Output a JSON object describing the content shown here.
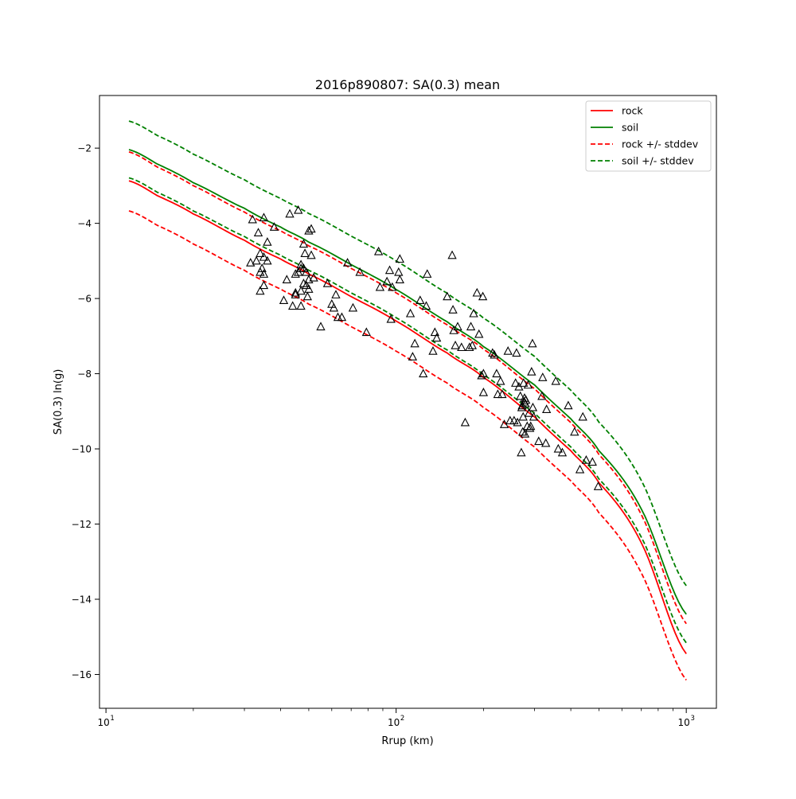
{
  "chart_data": {
    "type": "scatter",
    "title": "2016p890807: SA(0.3) mean",
    "xlabel": "Rrup (km)",
    "ylabel": "SA(0.3) ln(g)",
    "xscale": "log",
    "xlim": [
      9.5,
      1270
    ],
    "ylim": [
      -16.9,
      -0.6
    ],
    "x_ticks": [
      {
        "value": 10,
        "label": "10"
      },
      {
        "value": 100,
        "label": "10"
      },
      {
        "value": 1000,
        "label": "10"
      }
    ],
    "x_tick_exponents": [
      "1",
      "2",
      "3"
    ],
    "y_ticks": [
      {
        "value": -2,
        "label": "−2"
      },
      {
        "value": -4,
        "label": "−4"
      },
      {
        "value": -6,
        "label": "−6"
      },
      {
        "value": -8,
        "label": "−8"
      },
      {
        "value": -10,
        "label": "−10"
      },
      {
        "value": -12,
        "label": "−12"
      },
      {
        "value": -14,
        "label": "−14"
      },
      {
        "value": -16,
        "label": "−16"
      }
    ],
    "grid": false,
    "legend_position": "top-right",
    "series": [
      {
        "name": "rock",
        "style": "solid",
        "color": "#ff0000",
        "x": [
          12,
          15,
          20,
          30,
          40,
          50,
          70,
          100,
          150,
          200,
          300,
          400,
          500,
          700,
          1000
        ],
        "y": [
          -2.87,
          -3.26,
          -3.75,
          -4.45,
          -4.95,
          -5.35,
          -5.95,
          -6.6,
          -7.45,
          -8.1,
          -9.15,
          -10.05,
          -10.9,
          -12.5,
          -15.45
        ]
      },
      {
        "name": "soil",
        "style": "solid",
        "color": "#008000",
        "x": [
          12,
          15,
          20,
          30,
          40,
          50,
          70,
          100,
          150,
          200,
          300,
          400,
          500,
          700,
          1000
        ],
        "y": [
          -2.04,
          -2.42,
          -2.92,
          -3.6,
          -4.1,
          -4.5,
          -5.1,
          -5.76,
          -6.62,
          -7.28,
          -8.3,
          -9.2,
          -10.05,
          -11.6,
          -14.4
        ]
      },
      {
        "name": "rock +/- stddev",
        "style": "dashed",
        "color": "#ff0000",
        "x": [
          12,
          15,
          20,
          30,
          40,
          50,
          70,
          100,
          150,
          200,
          300,
          400,
          500,
          700,
          1000
        ],
        "y": [
          -2.1,
          -2.5,
          -3.0,
          -3.7,
          -4.2,
          -4.6,
          -5.2,
          -5.85,
          -6.7,
          -7.35,
          -8.4,
          -9.3,
          -10.15,
          -11.75,
          -14.65
        ]
      },
      {
        "name": "rock +/- stddev lower",
        "style": "dashed",
        "color": "#ff0000",
        "x": [
          12,
          15,
          20,
          30,
          40,
          50,
          70,
          100,
          150,
          200,
          300,
          400,
          500,
          700,
          1000
        ],
        "y": [
          -3.67,
          -4.05,
          -4.55,
          -5.25,
          -5.75,
          -6.15,
          -6.75,
          -7.4,
          -8.25,
          -8.9,
          -9.95,
          -10.85,
          -11.7,
          -13.3,
          -16.15
        ]
      },
      {
        "name": "soil +/- stddev",
        "style": "dashed",
        "color": "#008000",
        "x": [
          12,
          15,
          20,
          30,
          40,
          50,
          70,
          100,
          150,
          200,
          300,
          400,
          500,
          700,
          1000
        ],
        "y": [
          -1.28,
          -1.66,
          -2.16,
          -2.84,
          -3.34,
          -3.74,
          -4.34,
          -5.0,
          -5.86,
          -6.52,
          -7.54,
          -8.44,
          -9.29,
          -10.84,
          -13.64
        ]
      },
      {
        "name": "soil +/- stddev lower",
        "style": "dashed",
        "color": "#008000",
        "x": [
          12,
          15,
          20,
          30,
          40,
          50,
          70,
          100,
          150,
          200,
          300,
          400,
          500,
          700,
          1000
        ],
        "y": [
          -2.79,
          -3.17,
          -3.67,
          -4.35,
          -4.85,
          -5.25,
          -5.85,
          -6.51,
          -7.37,
          -8.03,
          -9.05,
          -9.95,
          -10.8,
          -12.35,
          -15.16
        ]
      }
    ],
    "legend": [
      {
        "label": "rock",
        "color": "#ff0000",
        "style": "solid"
      },
      {
        "label": "soil",
        "color": "#008000",
        "style": "solid"
      },
      {
        "label": "rock +/- stddev",
        "color": "#ff0000",
        "style": "dashed"
      },
      {
        "label": "soil +/- stddev",
        "color": "#008000",
        "style": "dashed"
      }
    ],
    "observations": {
      "marker": "triangle",
      "color": "#000000",
      "points": [
        [
          32,
          -3.9
        ],
        [
          33,
          -5.0
        ],
        [
          33.5,
          -4.25
        ],
        [
          34,
          -5.8
        ],
        [
          34,
          -4.8
        ],
        [
          34.5,
          -5.2
        ],
        [
          35,
          -3.85
        ],
        [
          35,
          -4.9
        ],
        [
          35,
          -5.35
        ],
        [
          35,
          -5.65
        ],
        [
          36,
          -4.5
        ],
        [
          36,
          -5.0
        ],
        [
          31.5,
          -5.05
        ],
        [
          34,
          -5.3
        ],
        [
          38,
          -4.1
        ],
        [
          41,
          -6.05
        ],
        [
          42,
          -5.5
        ],
        [
          43,
          -3.75
        ],
        [
          44,
          -6.2
        ],
        [
          45,
          -5.35
        ],
        [
          45,
          -5.9
        ],
        [
          46,
          -3.65
        ],
        [
          46,
          -5.3
        ],
        [
          47,
          -5.1
        ],
        [
          47,
          -5.8
        ],
        [
          47,
          -6.2
        ],
        [
          48,
          -4.55
        ],
        [
          48,
          -5.2
        ],
        [
          48,
          -5.6
        ],
        [
          48.5,
          -4.8
        ],
        [
          49,
          -5.3
        ],
        [
          49,
          -5.65
        ],
        [
          49.5,
          -5.95
        ],
        [
          50,
          -5.75
        ],
        [
          50,
          -5.5
        ],
        [
          50,
          -4.2
        ],
        [
          51,
          -4.85
        ],
        [
          51,
          -4.15
        ],
        [
          52,
          -5.45
        ],
        [
          45,
          -5.85
        ],
        [
          47,
          -5.2
        ],
        [
          55,
          -6.75
        ],
        [
          58,
          -5.6
        ],
        [
          60,
          -6.15
        ],
        [
          61,
          -6.25
        ],
        [
          62,
          -5.9
        ],
        [
          63,
          -6.5
        ],
        [
          65,
          -6.5
        ],
        [
          68,
          -5.05
        ],
        [
          71,
          -6.25
        ],
        [
          75,
          -5.3
        ],
        [
          79,
          -6.9
        ],
        [
          87,
          -4.75
        ],
        [
          88,
          -5.7
        ],
        [
          93,
          -5.55
        ],
        [
          95,
          -5.25
        ],
        [
          96,
          -6.55
        ],
        [
          97,
          -5.7
        ],
        [
          102,
          -5.3
        ],
        [
          103,
          -4.95
        ],
        [
          103,
          -5.5
        ],
        [
          112,
          -6.4
        ],
        [
          114,
          -7.55
        ],
        [
          116,
          -7.2
        ],
        [
          121,
          -6.05
        ],
        [
          124,
          -8.0
        ],
        [
          127,
          -6.2
        ],
        [
          128,
          -5.35
        ],
        [
          134,
          -7.4
        ],
        [
          136,
          -6.9
        ],
        [
          138,
          -7.05
        ],
        [
          150,
          -5.95
        ],
        [
          156,
          -4.85
        ],
        [
          157,
          -6.3
        ],
        [
          158,
          -6.85
        ],
        [
          160,
          -7.25
        ],
        [
          163,
          -6.75
        ],
        [
          168,
          -7.3
        ],
        [
          173,
          -9.3
        ],
        [
          179,
          -7.3
        ],
        [
          181,
          -6.75
        ],
        [
          183,
          -7.25
        ],
        [
          185,
          -6.4
        ],
        [
          190,
          -5.85
        ],
        [
          193,
          -6.95
        ],
        [
          197,
          -8.05
        ],
        [
          199,
          -5.95
        ],
        [
          200,
          -8.5
        ],
        [
          200,
          -8.0
        ],
        [
          215,
          -7.45
        ],
        [
          218,
          -7.5
        ],
        [
          222,
          -8.0
        ],
        [
          224,
          -8.55
        ],
        [
          229,
          -8.2
        ],
        [
          232,
          -8.55
        ],
        [
          236,
          -9.35
        ],
        [
          243,
          -7.4
        ],
        [
          247,
          -9.25
        ],
        [
          255,
          -9.25
        ],
        [
          258,
          -8.25
        ],
        [
          260,
          -7.45
        ],
        [
          262,
          -9.3
        ],
        [
          265,
          -8.35
        ],
        [
          268,
          -8.6
        ],
        [
          270,
          -10.1
        ],
        [
          271,
          -8.9
        ],
        [
          272,
          -8.85
        ],
        [
          273,
          -9.55
        ],
        [
          274,
          -9.15
        ],
        [
          275,
          -8.25
        ],
        [
          276,
          -8.75
        ],
        [
          277,
          -8.65
        ],
        [
          278,
          -9.6
        ],
        [
          279,
          -8.8
        ],
        [
          280,
          -8.7
        ],
        [
          283,
          -9.4
        ],
        [
          285,
          -8.3
        ],
        [
          287,
          -9.05
        ],
        [
          289,
          -9.45
        ],
        [
          291,
          -9.4
        ],
        [
          293,
          -7.95
        ],
        [
          295,
          -7.2
        ],
        [
          296,
          -8.9
        ],
        [
          298,
          -9.15
        ],
        [
          310,
          -9.8
        ],
        [
          318,
          -8.6
        ],
        [
          320,
          -8.1
        ],
        [
          328,
          -9.85
        ],
        [
          330,
          -8.95
        ],
        [
          355,
          -8.2
        ],
        [
          362,
          -10.0
        ],
        [
          374,
          -10.1
        ],
        [
          392,
          -8.85
        ],
        [
          412,
          -9.55
        ],
        [
          430,
          -10.55
        ],
        [
          440,
          -9.15
        ],
        [
          452,
          -10.3
        ],
        [
          475,
          -10.35
        ],
        [
          497,
          -11.0
        ]
      ]
    }
  }
}
